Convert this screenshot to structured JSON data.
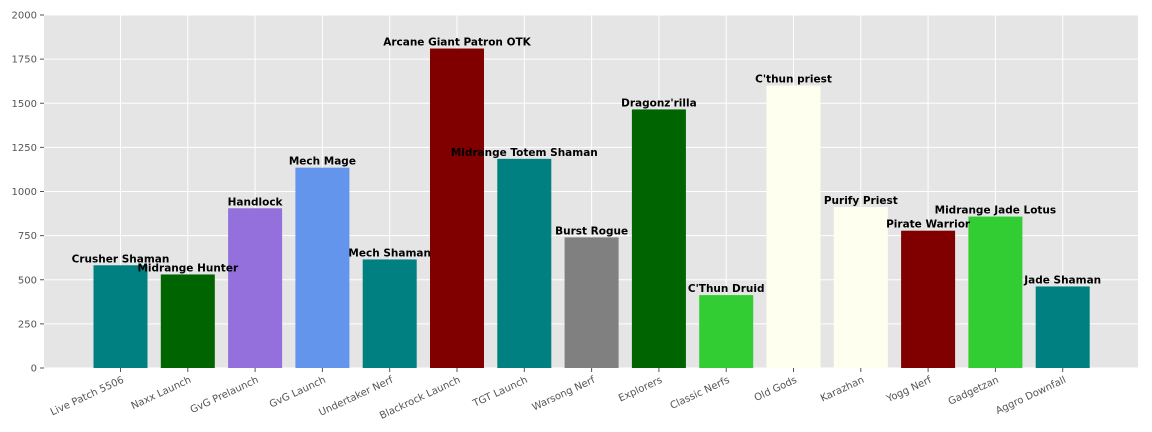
{
  "chart_data": {
    "type": "bar",
    "title": "",
    "xlabel": "",
    "ylabel": "",
    "ylim": [
      0,
      2000
    ],
    "yticks": [
      0,
      250,
      500,
      750,
      1000,
      1250,
      1500,
      1750,
      2000
    ],
    "grid": true,
    "legend": "none",
    "background": "#e5e5e5",
    "categories": [
      "Live Patch 5506",
      "Naxx Launch",
      "GvG Prelaunch",
      "GvG Launch",
      "Undertaker Nerf",
      "Blackrock Launch",
      "TGT Launch",
      "Warsong Nerf",
      "Explorers",
      "Classic Nerfs",
      "Old Gods",
      "Karazhan",
      "Yogg Nerf",
      "Gadgetzan",
      "Aggro Downfall"
    ],
    "values": [
      582,
      530,
      905,
      1135,
      615,
      1810,
      1185,
      740,
      1465,
      413,
      1600,
      912,
      778,
      858,
      462
    ],
    "labels": [
      "Crusher Shaman",
      "Midrange Hunter",
      "Handlock",
      "Mech Mage",
      "Mech Shaman",
      "Arcane Giant Patron OTK",
      "Midrange Totem Shaman",
      "Burst Rogue",
      "Dragonz'rilla",
      "C'Thun Druid",
      "C'thun priest",
      "Purify Priest",
      "Pirate Warrior",
      "Midrange Jade Lotus",
      "Jade Shaman"
    ],
    "colors": [
      "#008080",
      "#006400",
      "#9370db",
      "#6495ed",
      "#008080",
      "#800000",
      "#008080",
      "#808080",
      "#006400",
      "#32cd32",
      "#fffff0",
      "#fffff0",
      "#800000",
      "#32cd32",
      "#008080"
    ]
  }
}
